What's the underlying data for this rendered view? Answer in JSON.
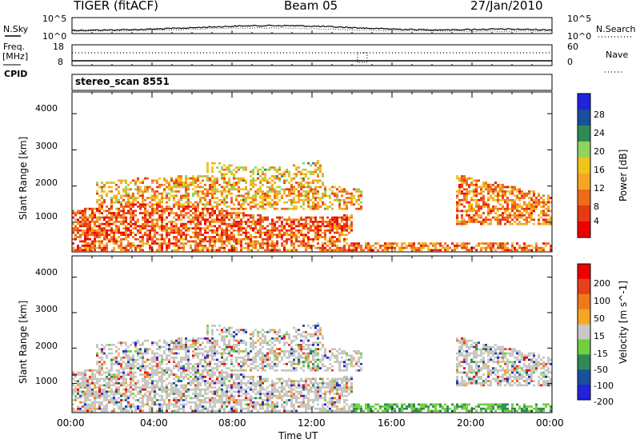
{
  "header": {
    "radar": "TIGER (fitACF)",
    "beam": "Beam 05",
    "date": "27/Jan/2010"
  },
  "noise_panel": {
    "left_label": "N.Sky",
    "right_label": "N.Search",
    "yticks": [
      "10^5",
      "10^0"
    ]
  },
  "freq_panel": {
    "left_label_top": "Freq.",
    "left_label_unit": "[MHz]",
    "left_ticks": [
      "18",
      "8"
    ],
    "right_label": "Nave",
    "right_ticks": [
      "60",
      "0"
    ]
  },
  "cpid_panel": {
    "left_label": "CPID",
    "program": "stereo_scan 8551"
  },
  "power_panel": {
    "ylabel": "Slant Range [km]",
    "yticks": [
      "4000",
      "3000",
      "2000",
      "1000"
    ],
    "colorbar_label": "Power [dB]",
    "colorbar_ticks": [
      "28",
      "24",
      "20",
      "16",
      "12",
      "8",
      "4"
    ],
    "colors": [
      "#2222dd",
      "#1a4f9a",
      "#2e8b57",
      "#8fd45c",
      "#f0c419",
      "#f5a623",
      "#ef6b1a",
      "#e53a12",
      "#ee0000"
    ]
  },
  "velocity_panel": {
    "ylabel": "Slant Range [km]",
    "yticks": [
      "4000",
      "3000",
      "2000",
      "1000"
    ],
    "colorbar_label": "Velocity [m s^-1]",
    "colorbar_ticks": [
      "200",
      "100",
      "50",
      "15",
      "-15",
      "-50",
      "-100",
      "-200"
    ],
    "colors": [
      "#2222dd",
      "#1a4f9a",
      "#2e8b57",
      "#6fd13c",
      "#c8c8c8",
      "#f5a623",
      "#ef7a1a",
      "#e8401a",
      "#ee0000"
    ],
    "ground_scatter_color": "#c6c6c0"
  },
  "x_axis": {
    "label": "Time UT",
    "ticks": [
      "00:00",
      "04:00",
      "08:00",
      "12:00",
      "16:00",
      "20:00",
      "00:00"
    ]
  },
  "chart_data": {
    "type": "heatmap",
    "x": [
      "00:00",
      "04:00",
      "08:00",
      "12:00",
      "16:00",
      "20:00",
      "00:00"
    ],
    "ylim": [
      180,
      4600
    ],
    "yunit": "km",
    "power_range_db": [
      0,
      30
    ],
    "velocity_range_ms": [
      -250,
      250
    ],
    "panels": [
      "Power [dB]",
      "Velocity [m s^-1]"
    ]
  }
}
